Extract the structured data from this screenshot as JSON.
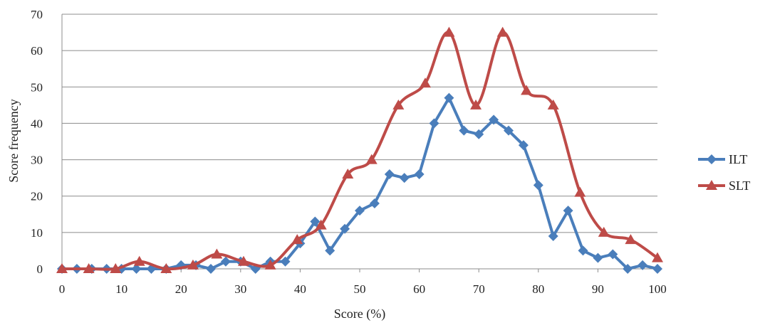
{
  "chart_data": {
    "type": "line",
    "xlabel": "Score (%)",
    "ylabel": "Score frequency",
    "xlim": [
      0,
      100
    ],
    "ylim": [
      0,
      70
    ],
    "xticks": [
      0,
      10,
      20,
      30,
      40,
      50,
      60,
      70,
      80,
      90,
      100
    ],
    "yticks": [
      0,
      10,
      20,
      30,
      40,
      50,
      60,
      70
    ],
    "grid": "horizontal",
    "legend_position": "right",
    "series": [
      {
        "name": "ILT",
        "color": "#4a7ebb",
        "marker": "diamond",
        "smooth": false,
        "points": [
          [
            0,
            0
          ],
          [
            2.5,
            0
          ],
          [
            5,
            0
          ],
          [
            7.5,
            0
          ],
          [
            10,
            0
          ],
          [
            12.5,
            0
          ],
          [
            15,
            0
          ],
          [
            17.5,
            0
          ],
          [
            20,
            1
          ],
          [
            22.5,
            1
          ],
          [
            25,
            0
          ],
          [
            27.5,
            2
          ],
          [
            30,
            2
          ],
          [
            32.5,
            0
          ],
          [
            35,
            2
          ],
          [
            37.5,
            2
          ],
          [
            40,
            7
          ],
          [
            42.5,
            13
          ],
          [
            45,
            5
          ],
          [
            47.5,
            11
          ],
          [
            50,
            16
          ],
          [
            52.5,
            18
          ],
          [
            55,
            26
          ],
          [
            57.5,
            25
          ],
          [
            60,
            26
          ],
          [
            62.5,
            40
          ],
          [
            65,
            47
          ],
          [
            67.5,
            38
          ],
          [
            70,
            37
          ],
          [
            72.5,
            41
          ],
          [
            75,
            38
          ],
          [
            77.5,
            34
          ],
          [
            80,
            23
          ],
          [
            82.5,
            9
          ],
          [
            85,
            16
          ],
          [
            87.5,
            5
          ],
          [
            90,
            3
          ],
          [
            92.5,
            4
          ],
          [
            95,
            0
          ],
          [
            97.5,
            1
          ],
          [
            100,
            0
          ]
        ]
      },
      {
        "name": "SLT",
        "color": "#be4b48",
        "marker": "triangle",
        "smooth": true,
        "points": [
          [
            0,
            0
          ],
          [
            4.5,
            0
          ],
          [
            9,
            0
          ],
          [
            13,
            2
          ],
          [
            17.5,
            0
          ],
          [
            22,
            1
          ],
          [
            26,
            4
          ],
          [
            30.5,
            2
          ],
          [
            35,
            1
          ],
          [
            39.5,
            8
          ],
          [
            43.5,
            12
          ],
          [
            48,
            26
          ],
          [
            52,
            30
          ],
          [
            56.5,
            45
          ],
          [
            61,
            51
          ],
          [
            65,
            65
          ],
          [
            69.5,
            45
          ],
          [
            74,
            65
          ],
          [
            78,
            49
          ],
          [
            82.5,
            45
          ],
          [
            87,
            21
          ],
          [
            91,
            10
          ],
          [
            95.5,
            8
          ],
          [
            100,
            3
          ]
        ]
      }
    ]
  }
}
